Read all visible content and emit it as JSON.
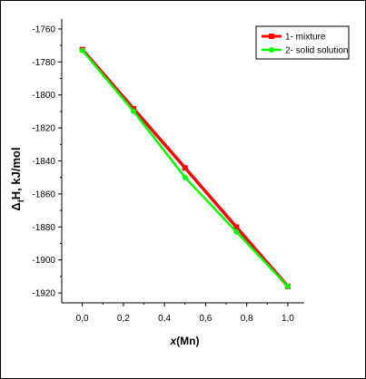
{
  "chart_data": {
    "type": "line",
    "xlabel": "x(Mn)",
    "ylabel": "ΔfH, kJ/mol",
    "xlim": [
      -0.1,
      1.08
    ],
    "ylim": [
      -1926,
      -1754
    ],
    "xticks": [
      0.0,
      0.2,
      0.4,
      0.6,
      0.8,
      1.0
    ],
    "xtick_labels": [
      "0,0",
      "0,2",
      "0,4",
      "0,6",
      "0,8",
      "1,0"
    ],
    "yticks": [
      -1760,
      -1780,
      -1800,
      -1820,
      -1840,
      -1860,
      -1880,
      -1900,
      -1920
    ],
    "ytick_labels": [
      "-1760",
      "-1780",
      "-1800",
      "-1820",
      "-1840",
      "-1860",
      "-1880",
      "-1900",
      "-1920"
    ],
    "grid": false,
    "legend": "top-right",
    "series": [
      {
        "name": "1- mixture",
        "color": "#ff0000",
        "marker": "square",
        "x": [
          0.0,
          0.25,
          0.5,
          0.75,
          1.0
        ],
        "y": [
          -1772.5,
          -1808.4,
          -1844.2,
          -1880.1,
          -1916.0
        ]
      },
      {
        "name": "2- solid solution",
        "color": "#00ff00",
        "marker": "circle",
        "x": [
          0.0,
          0.25,
          0.5,
          0.75,
          1.0
        ],
        "y": [
          -1773.0,
          -1810.0,
          -1850.0,
          -1883.0,
          -1916.0
        ]
      }
    ]
  }
}
